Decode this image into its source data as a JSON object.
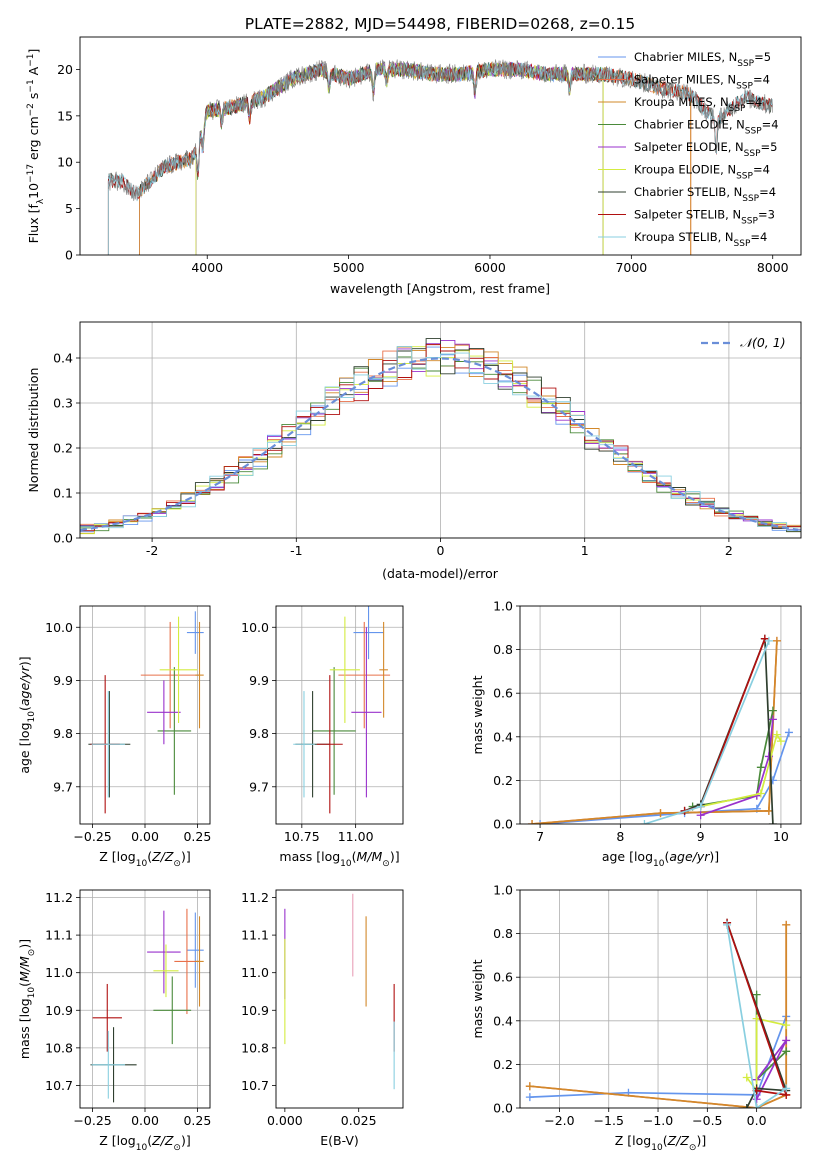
{
  "figure": {
    "title": "PLATE=2882, MJD=54498, FIBERID=0268, z=0.15"
  },
  "chart_data": [
    {
      "id": "spectrum",
      "type": "line",
      "xlabel": "wavelength [Angstrom, rest frame]",
      "ylabel": "Flux [f_λ 10^-17 erg cm^-2 s^-1 A^-1]",
      "xlim": [
        3100,
        8200
      ],
      "ylim": [
        0,
        23.5
      ],
      "xticks": [
        4000,
        5000,
        6000,
        7000,
        8000
      ],
      "yticks": [
        0,
        5,
        10,
        15,
        20
      ],
      "grid": false,
      "legend_position": "top-right",
      "observed_envelope": {
        "x": [
          3300,
          3400,
          3500,
          3700,
          3900,
          4000,
          4200,
          4400,
          4600,
          4800,
          5000,
          5200,
          5400,
          5600,
          5800,
          6000,
          6200,
          6400,
          6600,
          6800,
          7000,
          7200,
          7400,
          7600,
          7800,
          8000
        ],
        "y": [
          8.0,
          8.0,
          6.5,
          9.5,
          10.5,
          15.5,
          16.0,
          17.0,
          19.0,
          20.0,
          19.0,
          20.0,
          20.0,
          19.5,
          19.5,
          20.0,
          20.0,
          19.5,
          19.5,
          19.5,
          19.0,
          18.0,
          17.5,
          14.5,
          17.0,
          16.0
        ]
      },
      "series": [
        {
          "name": "Chabrier MILES, N_SSP=5",
          "label_main": "Chabrier MILES, N",
          "label_sub": "SSP",
          "label_tail": "=5",
          "color": "#6495ed",
          "start": 3520,
          "end": 6800
        },
        {
          "name": "Salpeter MILES, N_SSP=4",
          "label_main": "Salpeter MILES, N",
          "label_sub": "SSP",
          "label_tail": "=4",
          "color": "#e8704a",
          "start": 3520,
          "end": 7420
        },
        {
          "name": "Kroupa MILES, N_SSP=4",
          "label_main": "Kroupa MILES, N",
          "label_sub": "SSP",
          "label_tail": "=4",
          "color": "#d2882a",
          "start": 3520,
          "end": 7420
        },
        {
          "name": "Chabrier ELODIE, N_SSP=4",
          "label_main": "Chabrier ELODIE, N",
          "label_sub": "SSP",
          "label_tail": "=4",
          "color": "#4a8a3a",
          "start": 3920,
          "end": 6800
        },
        {
          "name": "Salpeter ELODIE, N_SSP=5",
          "label_main": "Salpeter ELODIE, N",
          "label_sub": "SSP",
          "label_tail": "=5",
          "color": "#9932cc",
          "start": 3920,
          "end": 6800
        },
        {
          "name": "Kroupa ELODIE, N_SSP=4",
          "label_main": "Kroupa ELODIE, N",
          "label_sub": "SSP",
          "label_tail": "=4",
          "color": "#d4ec40",
          "start": 3920,
          "end": 6800
        },
        {
          "name": "Chabrier STELIB, N_SSP=4",
          "label_main": "Chabrier STELIB, N",
          "label_sub": "SSP",
          "label_tail": "=4",
          "color": "#2f3f2f",
          "start": 3300,
          "end": 8000
        },
        {
          "name": "Salpeter STELIB, N_SSP=3",
          "label_main": "Salpeter STELIB, N",
          "label_sub": "SSP",
          "label_tail": "=3",
          "color": "#b01010",
          "start": 3300,
          "end": 8000
        },
        {
          "name": "Kroupa STELIB, N_SSP=4",
          "label_main": "Kroupa STELIB, N",
          "label_sub": "SSP",
          "label_tail": "=4",
          "color": "#89cfe0",
          "start": 3300,
          "end": 8000
        }
      ]
    },
    {
      "id": "residuals",
      "type": "line",
      "xlabel": "(data-model)/error",
      "ylabel": "Normed distribution",
      "xlim": [
        -2.5,
        2.5
      ],
      "ylim": [
        0,
        0.48
      ],
      "xticks": [
        -2,
        -1,
        0,
        1,
        2
      ],
      "yticks": [
        0.0,
        0.1,
        0.2,
        0.3,
        0.4
      ],
      "grid": true,
      "legend_position": "top-right",
      "reference_curve": {
        "name": "N(0,1)",
        "mean": 0,
        "sigma": 1,
        "color": "#6a8ed8",
        "dashed": true
      },
      "bin_width": 0.1,
      "histogram_colors": [
        "#6495ed",
        "#e8704a",
        "#d2882a",
        "#4a8a3a",
        "#9932cc",
        "#d4ec40",
        "#2f3f2f",
        "#b01010",
        "#89cfe0"
      ]
    },
    {
      "id": "age_vs_Z",
      "type": "scatter",
      "xlabel": "Z [log10(Z/Z_sun)]",
      "ylabel": "age [log10(age/yr)]",
      "xlim": [
        -0.31,
        0.31
      ],
      "ylim": [
        9.63,
        10.04
      ],
      "xticks": [
        -0.25,
        0.0,
        0.25
      ],
      "xticklabels": [
        "−0.25",
        "0.00",
        "0.25"
      ],
      "yticks": [
        9.7,
        9.8,
        9.9,
        10.0
      ],
      "grid": true,
      "points": [
        {
          "color": "#6495ed",
          "x": 0.24,
          "y": 9.99,
          "xerr": 0.04,
          "yerr": 0.04
        },
        {
          "color": "#e8704a",
          "x": 0.12,
          "y": 9.91,
          "xerr": 0.14,
          "yerr": 0.1
        },
        {
          "color": "#d2882a",
          "x": 0.26,
          "y": 9.91,
          "xerr": 0.02,
          "yerr": 0.1
        },
        {
          "color": "#4a8a3a",
          "x": 0.14,
          "y": 9.805,
          "xerr": 0.08,
          "yerr": 0.12
        },
        {
          "color": "#9932cc",
          "x": 0.09,
          "y": 9.84,
          "xerr": 0.08,
          "yerr": 0.06
        },
        {
          "color": "#d4ec40",
          "x": 0.16,
          "y": 9.92,
          "xerr": 0.09,
          "yerr": 0.1
        },
        {
          "color": "#2f3f2f",
          "x": -0.17,
          "y": 9.78,
          "xerr": 0.1,
          "yerr": 0.1
        },
        {
          "color": "#b01010",
          "x": -0.19,
          "y": 9.78,
          "xerr": 0.07,
          "yerr": 0.13
        },
        {
          "color": "#89cfe0",
          "x": -0.175,
          "y": 9.78,
          "xerr": 0.08,
          "yerr": 0.1
        }
      ]
    },
    {
      "id": "age_vs_mass",
      "type": "scatter",
      "xlabel": "mass [log10(M/M_sun)]",
      "ylabel": "",
      "xlim": [
        10.63,
        11.22
      ],
      "ylim": [
        9.63,
        10.04
      ],
      "xticks": [
        10.75,
        11.0
      ],
      "xticklabels": [
        "10.75",
        "11.00"
      ],
      "yticks": [
        9.7,
        9.8,
        9.9,
        10.0
      ],
      "grid": true,
      "points": [
        {
          "color": "#6495ed",
          "x": 11.06,
          "y": 9.99,
          "xerr": 0.07,
          "yerr": 0.05
        },
        {
          "color": "#e8704a",
          "x": 11.04,
          "y": 9.91,
          "xerr": 0.12,
          "yerr": 0.1
        },
        {
          "color": "#d2882a",
          "x": 11.13,
          "y": 9.92,
          "xerr": 0.02,
          "yerr": 0.09
        },
        {
          "color": "#4a8a3a",
          "x": 10.9,
          "y": 9.805,
          "xerr": 0.1,
          "yerr": 0.12
        },
        {
          "color": "#9932cc",
          "x": 11.05,
          "y": 9.84,
          "xerr": 0.07,
          "yerr": 0.16
        },
        {
          "color": "#d4ec40",
          "x": 10.95,
          "y": 9.92,
          "xerr": 0.07,
          "yerr": 0.1
        },
        {
          "color": "#2f3f2f",
          "x": 10.8,
          "y": 9.78,
          "xerr": 0.08,
          "yerr": 0.1
        },
        {
          "color": "#b01010",
          "x": 10.88,
          "y": 9.78,
          "xerr": 0.06,
          "yerr": 0.13
        },
        {
          "color": "#89cfe0",
          "x": 10.76,
          "y": 9.78,
          "xerr": 0.05,
          "yerr": 0.1
        }
      ]
    },
    {
      "id": "weight_vs_age",
      "type": "line",
      "xlabel": "age [log10(age/yr)]",
      "ylabel": "mass weight",
      "xlim": [
        6.75,
        10.25
      ],
      "ylim": [
        0,
        1.0
      ],
      "xticks": [
        7,
        8,
        9,
        10
      ],
      "yticks": [
        0.0,
        0.2,
        0.4,
        0.6,
        0.8,
        1.0
      ],
      "grid": true,
      "series": [
        {
          "color": "#6495ed",
          "x": [
            7.0,
            8.8,
            9.7,
            9.9,
            10.1
          ],
          "y": [
            0.0,
            0.05,
            0.07,
            0.2,
            0.42
          ]
        },
        {
          "color": "#e8704a",
          "x": [
            6.9,
            8.5,
            9.85,
            9.95
          ],
          "y": [
            0.0,
            0.05,
            0.06,
            0.84
          ]
        },
        {
          "color": "#d2882a",
          "x": [
            6.9,
            8.5,
            9.85,
            9.95
          ],
          "y": [
            0.0,
            0.05,
            0.06,
            0.84
          ]
        },
        {
          "color": "#4a8a3a",
          "x": [
            8.9,
            9.7,
            9.75,
            9.9
          ],
          "y": [
            0.08,
            0.13,
            0.26,
            0.52
          ]
        },
        {
          "color": "#9932cc",
          "x": [
            9.0,
            9.7,
            9.85,
            9.9
          ],
          "y": [
            0.04,
            0.13,
            0.31,
            0.48
          ]
        },
        {
          "color": "#d4ec40",
          "x": [
            9.0,
            9.75,
            9.95,
            10.0
          ],
          "y": [
            0.08,
            0.14,
            0.41,
            0.38
          ]
        },
        {
          "color": "#2f3f2f",
          "x": [
            8.8,
            9.0,
            9.8,
            9.9
          ],
          "y": [
            0.06,
            0.09,
            0.85,
            0.0
          ]
        },
        {
          "color": "#b01010",
          "x": [
            8.8,
            9.0,
            9.8
          ],
          "y": [
            0.06,
            0.08,
            0.85
          ]
        },
        {
          "color": "#89cfe0",
          "x": [
            8.3,
            9.0,
            9.85
          ],
          "y": [
            0.0,
            0.08,
            0.84
          ]
        }
      ]
    },
    {
      "id": "mass_vs_Z",
      "type": "scatter",
      "xlabel": "Z [log10(Z/Z_sun)]",
      "ylabel": "mass [log10(M/M_sun)]",
      "xlim": [
        -0.31,
        0.31
      ],
      "ylim": [
        10.64,
        11.22
      ],
      "xticks": [
        -0.25,
        0.0,
        0.25
      ],
      "xticklabels": [
        "−0.25",
        "0.00",
        "0.25"
      ],
      "yticks": [
        10.7,
        10.8,
        10.9,
        11.0,
        11.1,
        11.2
      ],
      "grid": true,
      "points": [
        {
          "color": "#6495ed",
          "x": 0.24,
          "y": 11.06,
          "xerr": 0.04,
          "yerr": 0.1
        },
        {
          "color": "#e8704a",
          "x": 0.2,
          "y": 11.03,
          "xerr": 0.06,
          "yerr": 0.14
        },
        {
          "color": "#d2882a",
          "x": 0.26,
          "y": 11.03,
          "xerr": 0.02,
          "yerr": 0.12
        },
        {
          "color": "#4a8a3a",
          "x": 0.13,
          "y": 10.9,
          "xerr": 0.09,
          "yerr": 0.09
        },
        {
          "color": "#9932cc",
          "x": 0.09,
          "y": 11.055,
          "xerr": 0.08,
          "yerr": 0.11
        },
        {
          "color": "#d4ec40",
          "x": 0.1,
          "y": 11.005,
          "xerr": 0.06,
          "yerr": 0.07
        },
        {
          "color": "#2f3f2f",
          "x": -0.15,
          "y": 10.755,
          "xerr": 0.11,
          "yerr": 0.1
        },
        {
          "color": "#b01010",
          "x": -0.18,
          "y": 10.88,
          "xerr": 0.07,
          "yerr": 0.09
        },
        {
          "color": "#89cfe0",
          "x": -0.175,
          "y": 10.755,
          "xerr": 0.08,
          "yerr": 0.09
        }
      ]
    },
    {
      "id": "mass_vs_ebv",
      "type": "scatter",
      "xlabel": "E(B-V)",
      "ylabel": "",
      "xlim": [
        -0.003,
        0.04
      ],
      "ylim": [
        10.64,
        11.22
      ],
      "xticks": [
        0.0,
        0.025
      ],
      "xticklabels": [
        "0.000",
        "0.025"
      ],
      "yticks": [
        10.7,
        10.8,
        10.9,
        11.0,
        11.1,
        11.2
      ],
      "grid": false,
      "points": [
        {
          "color": "#9932cc",
          "x": 0.0,
          "y": 11.05,
          "xerr": 0,
          "yerr": 0.12
        },
        {
          "color": "#d4ec40",
          "x": 0.0,
          "y": 10.95,
          "xerr": 0,
          "yerr": 0.14
        },
        {
          "color": "#e8a0b8",
          "x": 0.023,
          "y": 11.1,
          "xerr": 0,
          "yerr": 0.11
        },
        {
          "color": "#d2882a",
          "x": 0.0275,
          "y": 11.03,
          "xerr": 0,
          "yerr": 0.12
        },
        {
          "color": "#b01010",
          "x": 0.037,
          "y": 10.88,
          "xerr": 0,
          "yerr": 0.09
        },
        {
          "color": "#89cfe0",
          "x": 0.037,
          "y": 10.78,
          "xerr": 0,
          "yerr": 0.09
        }
      ]
    },
    {
      "id": "weight_vs_Z",
      "type": "line",
      "xlabel": "Z [log10(Z/Z_sun)]",
      "ylabel": "mass weight",
      "xlim": [
        -2.4,
        0.45
      ],
      "ylim": [
        0,
        1.0
      ],
      "xticks": [
        -2.0,
        -1.5,
        -1.0,
        -0.5,
        0.0
      ],
      "xticklabels": [
        "−2.0",
        "−1.5",
        "−1.0",
        "−0.5",
        "0.0"
      ],
      "yticks": [
        0.0,
        0.2,
        0.4,
        0.6,
        0.8,
        1.0
      ],
      "grid": true,
      "series": [
        {
          "color": "#6495ed",
          "x": [
            -2.3,
            -1.3,
            0.0,
            0.3
          ],
          "y": [
            0.05,
            0.07,
            0.06,
            0.42
          ]
        },
        {
          "color": "#e8704a",
          "x": [
            -2.3,
            0.0,
            0.3,
            0.3
          ],
          "y": [
            0.1,
            0.0,
            0.06,
            0.84
          ]
        },
        {
          "color": "#d2882a",
          "x": [
            -2.3,
            0.0,
            0.3,
            0.3
          ],
          "y": [
            0.1,
            0.0,
            0.06,
            0.84
          ]
        },
        {
          "color": "#4a8a3a",
          "x": [
            0.0,
            0.0,
            0.3
          ],
          "y": [
            0.52,
            0.13,
            0.26
          ]
        },
        {
          "color": "#9932cc",
          "x": [
            0.0,
            0.3,
            0.0
          ],
          "y": [
            0.13,
            0.31,
            0.04
          ]
        },
        {
          "color": "#d4ec40",
          "x": [
            -0.1,
            0.0,
            0.0,
            0.3
          ],
          "y": [
            0.14,
            0.08,
            0.41,
            0.38
          ]
        },
        {
          "color": "#2f3f2f",
          "x": [
            -0.1,
            0.0,
            0.3,
            -0.3
          ],
          "y": [
            0.0,
            0.09,
            0.08,
            0.85
          ]
        },
        {
          "color": "#b01010",
          "x": [
            0.0,
            0.3,
            -0.3
          ],
          "y": [
            0.08,
            0.06,
            0.85
          ]
        },
        {
          "color": "#89cfe0",
          "x": [
            0.3,
            0.0,
            -0.3
          ],
          "y": [
            0.09,
            0.0,
            0.84
          ]
        }
      ]
    }
  ]
}
